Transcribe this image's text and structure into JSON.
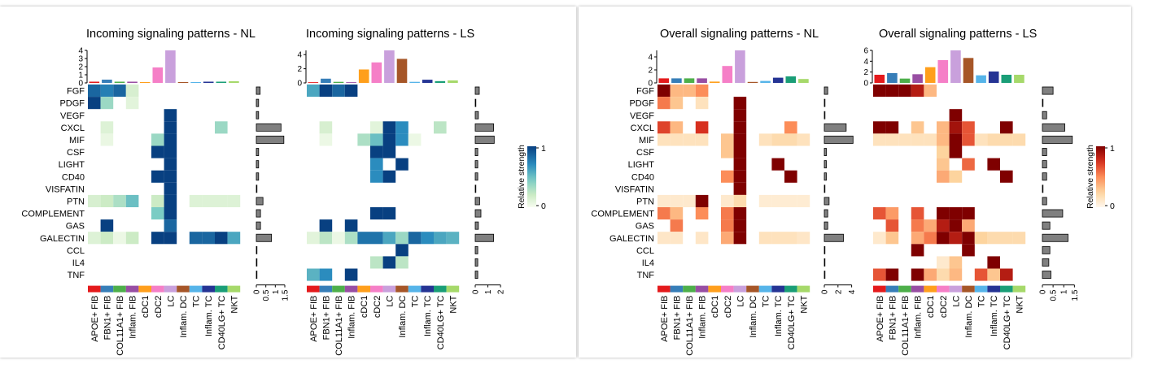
{
  "rows": [
    "FGF",
    "PDGF",
    "VEGF",
    "CXCL",
    "MIF",
    "CSF",
    "LIGHT",
    "CD40",
    "VISFATIN",
    "PTN",
    "COMPLEMENT",
    "GAS",
    "GALECTIN",
    "CCL",
    "IL4",
    "TNF"
  ],
  "columns": [
    "APOE+ FIB",
    "FBN1+ FIB",
    "COL11A1+ FIB",
    "Inflam. FIB",
    "cDC1",
    "cDC2",
    "LC",
    "Inflam. DC",
    "TC",
    "Inflam. TC",
    "CD40LG+ TC",
    "NKT"
  ],
  "column_colors": [
    "#e41a1c",
    "#377eb8",
    "#4daf4a",
    "#984ea3",
    "#ff9f1c",
    "#f57fc7",
    "#c9a0dc",
    "#a65628",
    "#56b4e9",
    "#253494",
    "#1a9e77",
    "#a6d96a"
  ],
  "legend": {
    "title": "Relative strength",
    "max_label": "1",
    "min_label": "0"
  },
  "chart_data": [
    {
      "type": "heatmap",
      "id": "nl_in",
      "title": "Incoming signaling patterns - NL",
      "palette": "blue",
      "top_bar": {
        "values": [
          0.15,
          0.4,
          0.15,
          0.15,
          0.1,
          1.9,
          4.1,
          0.1,
          0.1,
          0.15,
          0.15,
          0.2
        ],
        "ylim": [
          0,
          4
        ],
        "ticks": [
          0,
          1,
          2,
          3,
          4
        ]
      },
      "right_bar": {
        "values": [
          0.2,
          0.12,
          0.12,
          1.3,
          1.45,
          0.12,
          0.12,
          0.12,
          0.02,
          0.35,
          0.22,
          0.22,
          0.8,
          0.02,
          0.02,
          0.02
        ],
        "xlim": [
          0,
          1.8
        ],
        "ticks": [
          0,
          0.5,
          1,
          1.5
        ],
        "tick_labels": [
          "0",
          "0.5",
          "1",
          "1.5"
        ]
      },
      "matrix": [
        [
          0.85,
          0.75,
          0.85,
          0.15,
          0,
          0,
          0,
          0,
          0,
          0,
          0,
          0
        ],
        [
          1,
          0.35,
          0,
          0.1,
          0,
          0,
          0,
          0,
          0,
          0,
          0,
          0
        ],
        [
          0,
          0,
          0,
          0,
          0,
          0,
          1,
          0,
          0,
          0,
          0,
          0
        ],
        [
          0,
          0.12,
          0,
          0,
          0,
          0,
          1,
          0,
          0,
          0,
          0.35,
          0
        ],
        [
          0,
          0.06,
          0,
          0,
          0,
          0.35,
          1,
          0,
          0,
          0,
          0,
          0
        ],
        [
          0,
          0,
          0,
          0,
          0,
          1,
          1,
          0,
          0,
          0,
          0,
          0
        ],
        [
          0,
          0,
          0,
          0,
          0,
          0,
          1,
          0,
          0,
          0,
          0,
          0
        ],
        [
          0,
          0,
          0,
          0,
          0,
          1,
          1,
          0,
          0,
          0,
          0,
          0
        ],
        [
          0,
          0,
          0,
          0,
          0,
          0,
          1,
          0,
          0,
          0,
          0,
          0
        ],
        [
          0.15,
          0.2,
          0.3,
          0.5,
          0,
          0.2,
          1,
          0,
          0.12,
          0.12,
          0.12,
          0.12
        ],
        [
          0,
          0,
          0,
          0,
          0,
          0.45,
          1,
          0,
          0,
          0,
          0,
          0
        ],
        [
          0,
          1,
          0,
          0,
          0,
          0,
          0.85,
          0,
          0,
          0,
          0,
          0
        ],
        [
          0.12,
          0.2,
          0.05,
          0.2,
          0,
          1,
          1,
          0,
          0.85,
          0.85,
          1,
          0.6
        ],
        [
          0,
          0,
          0,
          0,
          0,
          0,
          0,
          0,
          0,
          0,
          0,
          0
        ],
        [
          0,
          0,
          0,
          0,
          0,
          0,
          0,
          0,
          0,
          0,
          0,
          0
        ],
        [
          0,
          0,
          0,
          0,
          0,
          0,
          0,
          0,
          0,
          0,
          0,
          0
        ]
      ]
    },
    {
      "type": "heatmap",
      "id": "ls_in",
      "title": "Incoming signaling patterns - LS",
      "palette": "blue",
      "top_bar": {
        "values": [
          0.1,
          0.6,
          0.15,
          0.1,
          1.9,
          2.9,
          4.6,
          3.4,
          0.15,
          0.45,
          0.25,
          0.35
        ],
        "ylim": [
          0,
          4.6
        ],
        "ticks": [
          0,
          2,
          4
        ]
      },
      "right_bar": {
        "values": [
          0.32,
          0.02,
          0.25,
          1.45,
          1.5,
          0.2,
          0.2,
          0.2,
          0.02,
          0.35,
          0.45,
          0.25,
          1.45,
          0.2,
          0.2,
          0.2
        ],
        "xlim": [
          0,
          2.7
        ],
        "ticks": [
          0,
          1,
          2
        ],
        "tick_labels": [
          "0",
          "1",
          "2"
        ]
      },
      "matrix": [
        [
          0.6,
          1,
          0.85,
          1,
          0,
          0,
          0,
          0,
          0,
          0,
          0,
          0
        ],
        [
          0,
          0,
          0,
          0,
          0,
          0,
          0,
          0,
          0,
          0,
          0,
          0
        ],
        [
          0,
          0,
          0,
          0,
          0,
          0,
          0,
          0,
          0,
          0,
          0,
          0
        ],
        [
          0,
          0.15,
          0,
          0,
          0,
          0.1,
          1,
          0.7,
          0,
          0,
          0.25,
          0
        ],
        [
          0,
          0.05,
          0,
          0,
          0.3,
          0.5,
          1,
          0.7,
          0.05,
          0,
          0,
          0
        ],
        [
          0,
          0,
          0,
          0,
          0,
          1,
          1,
          0,
          0,
          0,
          0,
          0
        ],
        [
          0,
          0,
          0,
          0,
          0,
          0.7,
          0,
          1,
          0,
          0,
          0,
          0
        ],
        [
          0,
          0,
          0,
          0,
          0,
          0.7,
          1,
          0,
          0,
          0,
          0,
          0
        ],
        [
          0,
          0,
          0,
          0,
          0,
          0,
          0,
          0,
          0,
          0,
          0,
          0
        ],
        [
          0,
          0,
          0,
          0,
          0,
          0,
          0,
          0,
          0,
          0,
          0,
          0
        ],
        [
          0,
          0,
          0,
          0,
          0,
          1,
          1,
          0,
          0,
          0,
          0,
          0
        ],
        [
          0,
          1,
          0,
          1,
          0,
          0,
          0,
          0,
          0,
          0,
          0,
          0
        ],
        [
          0.1,
          0.25,
          0.05,
          0.3,
          0.8,
          0.8,
          0.6,
          0.35,
          0.85,
          0.7,
          0.6,
          0.55
        ],
        [
          0,
          0,
          0,
          0,
          0,
          0,
          0,
          1,
          0,
          0,
          0,
          0
        ],
        [
          0,
          0,
          0,
          0,
          0,
          0.25,
          1,
          0.25,
          0,
          0,
          0,
          0
        ],
        [
          0.55,
          0.7,
          0,
          1,
          0,
          0,
          0,
          0,
          0,
          0,
          0,
          0
        ]
      ]
    },
    {
      "type": "heatmap",
      "id": "nl_all",
      "title": "Overall signaling patterns - NL",
      "palette": "red",
      "top_bar": {
        "values": [
          0.7,
          0.7,
          0.7,
          0.7,
          0.2,
          2.6,
          5.7,
          0.15,
          0.3,
          0.8,
          1.0,
          0.6
        ],
        "ylim": [
          0,
          5
        ],
        "ticks": [
          0,
          2,
          4
        ]
      },
      "right_bar": {
        "values": [
          0.5,
          0.1,
          0.1,
          3.2,
          4.2,
          0.3,
          0.3,
          0.3,
          0.02,
          0.7,
          0.5,
          0.5,
          2.8,
          0.02,
          0.02,
          0.1
        ],
        "xlim": [
          0,
          5
        ],
        "ticks": [
          0,
          2,
          4
        ],
        "tick_labels": [
          "0",
          "2",
          "4"
        ]
      },
      "matrix": [
        [
          1,
          0.35,
          0.35,
          0.5,
          0,
          0,
          0,
          0,
          0,
          0,
          0,
          0
        ],
        [
          0.55,
          0.3,
          0,
          0.15,
          0,
          0,
          1,
          0,
          0,
          0,
          0,
          0
        ],
        [
          0,
          0,
          0,
          0,
          0,
          0,
          1,
          0,
          0,
          0,
          0,
          0
        ],
        [
          0.7,
          0.35,
          0,
          0.75,
          0,
          0,
          1,
          0,
          0,
          0,
          0.5,
          0
        ],
        [
          0.15,
          0.15,
          0.15,
          0.15,
          0,
          0.3,
          1,
          0,
          0.15,
          0.2,
          0.2,
          0.15
        ],
        [
          0,
          0,
          0,
          0,
          0,
          0.3,
          1,
          0,
          0,
          0,
          0,
          0
        ],
        [
          0,
          0,
          0,
          0,
          0,
          0,
          1,
          0,
          0,
          1,
          0,
          0
        ],
        [
          0,
          0,
          0,
          0,
          0,
          0.5,
          1,
          0,
          0,
          0,
          1,
          0
        ],
        [
          0,
          0,
          0,
          0,
          0,
          0,
          1,
          0,
          0,
          0,
          0,
          0
        ],
        [
          0.1,
          0.1,
          0.1,
          1,
          0,
          0.1,
          0.2,
          0,
          0.08,
          0.08,
          0.08,
          0.08
        ],
        [
          0.55,
          0.35,
          0,
          0.5,
          0,
          0.55,
          1,
          0,
          0,
          0,
          0,
          0
        ],
        [
          0,
          0.55,
          0,
          0,
          0,
          0.55,
          1,
          0,
          0,
          0,
          0,
          0
        ],
        [
          0.12,
          0.12,
          0,
          0.12,
          0,
          0.4,
          1,
          0,
          0.15,
          0.15,
          0.15,
          0.12
        ],
        [
          0,
          0,
          0,
          0,
          0,
          0,
          0,
          0,
          0,
          0,
          0,
          0
        ],
        [
          0,
          0,
          0,
          0,
          0,
          0,
          0,
          0,
          0,
          0,
          0,
          0
        ],
        [
          0,
          0,
          0,
          0,
          0,
          0,
          0,
          0,
          0,
          0,
          0,
          0
        ]
      ]
    },
    {
      "type": "heatmap",
      "id": "ls_all",
      "title": "Overall signaling patterns - LS",
      "palette": "red",
      "top_bar": {
        "values": [
          1.5,
          1.8,
          0.8,
          1.6,
          2.9,
          4.2,
          6.1,
          4.6,
          1.4,
          2.1,
          1.5,
          1.5
        ],
        "ylim": [
          0,
          6
        ],
        "ticks": [
          0,
          2,
          4,
          6
        ]
      },
      "right_bar": {
        "values": [
          0.5,
          0.02,
          0.2,
          1.05,
          1.4,
          0.2,
          0.2,
          0.2,
          0.02,
          0.2,
          0.95,
          0.35,
          1.2,
          0.35,
          0.3,
          0.4
        ],
        "xlim": [
          0,
          1.6
        ],
        "ticks": [
          0,
          0.5,
          1,
          1.5
        ],
        "tick_labels": [
          "0",
          "0.5",
          "1",
          "1.5"
        ]
      },
      "matrix": [
        [
          1,
          1,
          1,
          0.85,
          0.35,
          0,
          0,
          0,
          0,
          0,
          0,
          0
        ],
        [
          0,
          0,
          0,
          0,
          0,
          0,
          0,
          0,
          0,
          0,
          0,
          0
        ],
        [
          0,
          0,
          0,
          0,
          0,
          0,
          1,
          0,
          0,
          0,
          0,
          0
        ],
        [
          1,
          1,
          0,
          0.3,
          0,
          0.35,
          0.9,
          0.65,
          0,
          0,
          1,
          0
        ],
        [
          0.15,
          0.15,
          0.15,
          0.15,
          0.15,
          0.35,
          1,
          0.65,
          0.15,
          0.2,
          0.2,
          0.2
        ],
        [
          0,
          0,
          0,
          0,
          0,
          0.25,
          1,
          0,
          0,
          0,
          0,
          0
        ],
        [
          0,
          0,
          0,
          0,
          0,
          0.3,
          0,
          0.6,
          0,
          1,
          0,
          0
        ],
        [
          0,
          0,
          0,
          0,
          0,
          0.4,
          0.25,
          0,
          0,
          0,
          1,
          0
        ],
        [
          0,
          0,
          0,
          0,
          0,
          0,
          0,
          0,
          0,
          0,
          0,
          0
        ],
        [
          0,
          0,
          0,
          0,
          0,
          0,
          0,
          0,
          0,
          0,
          0,
          0
        ],
        [
          0.65,
          0.45,
          0,
          0.65,
          0,
          1,
          1,
          1,
          0,
          0,
          0,
          0
        ],
        [
          0,
          0.65,
          0,
          0.55,
          0.4,
          0.85,
          1,
          0.4,
          0,
          0,
          0,
          0
        ],
        [
          0.1,
          0.3,
          0,
          0.4,
          0.55,
          1,
          0.85,
          1,
          0.25,
          0.2,
          0.2,
          0.2
        ],
        [
          0,
          0,
          0,
          1,
          0,
          0,
          0,
          1,
          0,
          0,
          0,
          0
        ],
        [
          0,
          0,
          0,
          0,
          0,
          0.1,
          0.3,
          0,
          0,
          1,
          0,
          0
        ],
        [
          0.65,
          1,
          0,
          1,
          0.4,
          0.2,
          0.35,
          0,
          0.65,
          0.3,
          0.85,
          0
        ]
      ]
    }
  ]
}
